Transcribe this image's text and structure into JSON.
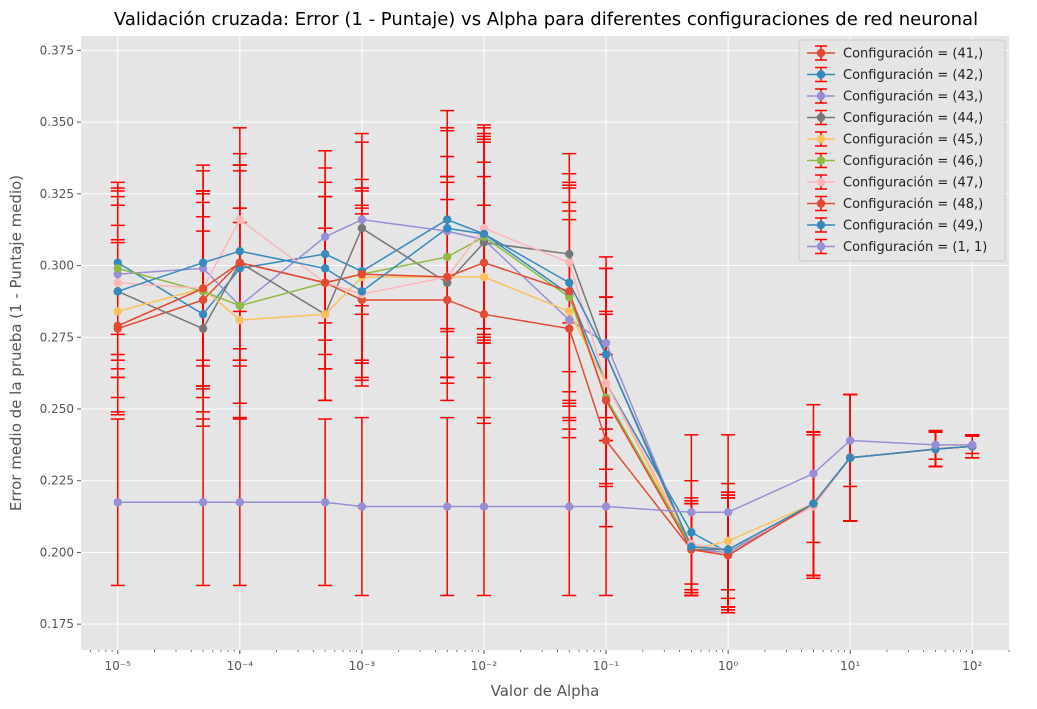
{
  "chart_data": {
    "type": "line",
    "title": "Validación cruzada: Error (1 - Puntaje) vs Alpha para diferentes configuraciones de red neuronal",
    "xlabel": "Valor de Alpha",
    "ylabel": "Error medio de la prueba (1 - Puntaje medio)",
    "xscale": "log",
    "xlim": [
      5e-06,
      200.0
    ],
    "ylim": [
      0.166,
      0.38
    ],
    "x": [
      1e-05,
      5e-05,
      0.0001,
      0.0005,
      0.001,
      0.005,
      0.01,
      0.05,
      0.1,
      0.5,
      1,
      5,
      10,
      50,
      100
    ],
    "x_tick_values": [
      1e-05,
      0.0001,
      0.001,
      0.01,
      0.1,
      1,
      10,
      100
    ],
    "x_tick_labels": [
      "10⁻⁵",
      "10⁻⁴",
      "10⁻³",
      "10⁻²",
      "10⁻¹",
      "10⁰",
      "10¹",
      "10²"
    ],
    "y_ticks": [
      0.175,
      0.2,
      0.225,
      0.25,
      0.275,
      0.3,
      0.325,
      0.35,
      0.375
    ],
    "y_tick_labels": [
      "0.175",
      "0.200",
      "0.225",
      "0.250",
      "0.275",
      "0.300",
      "0.325",
      "0.350",
      "0.375"
    ],
    "grid": true,
    "legend_position": "top-right",
    "errorbar_color": "#ff0000",
    "background": "#e5e5e5",
    "series": [
      {
        "name": "Configuración = (41,)",
        "color": "#E24A33",
        "values": [
          0.278,
          0.288,
          0.301,
          0.294,
          0.288,
          0.288,
          0.283,
          0.278,
          0.239,
          0.201,
          0.199,
          0.217,
          0.233,
          0.236,
          0.237
        ],
        "errors": [
          0.03,
          0.034,
          0.034,
          0.03,
          0.03,
          0.035,
          0.038,
          0.038,
          0.03,
          0.016,
          0.02,
          0.025,
          0.022,
          0.006,
          0.004
        ]
      },
      {
        "name": "Configuración = (42,)",
        "color": "#348ABD",
        "values": [
          0.301,
          0.283,
          0.299,
          0.304,
          0.298,
          0.316,
          0.311,
          0.29,
          0.259,
          0.207,
          0.2,
          0.217,
          0.233,
          0.236,
          0.237
        ],
        "errors": [
          0.025,
          0.034,
          0.034,
          0.03,
          0.032,
          0.038,
          0.038,
          0.038,
          0.03,
          0.018,
          0.02,
          0.025,
          0.022,
          0.006,
          0.004
        ]
      },
      {
        "name": "Configuración = (43,)",
        "color": "#988ED5",
        "values": [
          0.297,
          0.299,
          0.286,
          0.31,
          0.316,
          0.312,
          0.309,
          0.281,
          0.273,
          0.201,
          0.2,
          0.217,
          0.233,
          0.236,
          0.237
        ],
        "errors": [
          0.03,
          0.034,
          0.034,
          0.03,
          0.03,
          0.035,
          0.035,
          0.038,
          0.03,
          0.016,
          0.02,
          0.025,
          0.022,
          0.006,
          0.004
        ]
      },
      {
        "name": "Configuración = (44,)",
        "color": "#777777",
        "values": [
          0.291,
          0.278,
          0.301,
          0.283,
          0.313,
          0.294,
          0.308,
          0.304,
          0.269,
          0.201,
          0.201,
          0.217,
          0.233,
          0.236,
          0.237
        ],
        "errors": [
          0.03,
          0.034,
          0.034,
          0.03,
          0.03,
          0.035,
          0.035,
          0.024,
          0.03,
          0.016,
          0.02,
          0.025,
          0.022,
          0.006,
          0.004
        ]
      },
      {
        "name": "Configuración = (45,)",
        "color": "#FBC15E",
        "values": [
          0.284,
          0.292,
          0.281,
          0.283,
          0.296,
          0.296,
          0.296,
          0.284,
          0.259,
          0.201,
          0.204,
          0.217,
          0.233,
          0.236,
          0.237
        ],
        "errors": [
          0.03,
          0.034,
          0.034,
          0.03,
          0.03,
          0.035,
          0.035,
          0.038,
          0.03,
          0.016,
          0.02,
          0.025,
          0.022,
          0.006,
          0.004
        ]
      },
      {
        "name": "Configuración = (46,)",
        "color": "#8EBA42",
        "values": [
          0.299,
          0.291,
          0.286,
          0.294,
          0.297,
          0.303,
          0.31,
          0.289,
          0.254,
          0.202,
          0.201,
          0.217,
          0.233,
          0.236,
          0.237
        ],
        "errors": [
          0.03,
          0.034,
          0.034,
          0.03,
          0.03,
          0.035,
          0.035,
          0.038,
          0.03,
          0.016,
          0.02,
          0.025,
          0.022,
          0.006,
          0.004
        ]
      },
      {
        "name": "Configuración = (47,)",
        "color": "#FFB5B8",
        "values": [
          0.294,
          0.292,
          0.316,
          0.294,
          0.29,
          0.296,
          0.313,
          0.301,
          0.259,
          0.203,
          0.201,
          0.216,
          0.233,
          0.236,
          0.237
        ],
        "errors": [
          0.03,
          0.034,
          0.032,
          0.03,
          0.03,
          0.035,
          0.035,
          0.038,
          0.03,
          0.016,
          0.02,
          0.025,
          0.022,
          0.006,
          0.004
        ]
      },
      {
        "name": "Configuración = (48,)",
        "color": "#E24A33",
        "values": [
          0.279,
          0.292,
          0.301,
          0.294,
          0.297,
          0.296,
          0.301,
          0.291,
          0.253,
          0.201,
          0.199,
          0.217,
          0.233,
          0.236,
          0.237
        ],
        "errors": [
          0.03,
          0.034,
          0.034,
          0.03,
          0.03,
          0.035,
          0.035,
          0.038,
          0.03,
          0.016,
          0.02,
          0.025,
          0.022,
          0.006,
          0.004
        ]
      },
      {
        "name": "Configuración = (49,)",
        "color": "#348ABD",
        "values": [
          0.291,
          0.301,
          0.305,
          0.299,
          0.291,
          0.313,
          0.311,
          0.294,
          0.269,
          0.202,
          0.201,
          0.217,
          0.233,
          0.236,
          0.237
        ],
        "errors": [
          0.03,
          0.034,
          0.034,
          0.03,
          0.03,
          0.035,
          0.035,
          0.038,
          0.03,
          0.016,
          0.02,
          0.025,
          0.022,
          0.006,
          0.004
        ]
      },
      {
        "name": "Configuración = (1, 1)",
        "color": "#988ED5",
        "values": [
          0.2175,
          0.2175,
          0.2175,
          0.2175,
          0.216,
          0.216,
          0.216,
          0.216,
          0.216,
          0.214,
          0.214,
          0.2275,
          0.239,
          0.2375,
          0.2375
        ],
        "errors": [
          0.029,
          0.029,
          0.029,
          0.029,
          0.031,
          0.031,
          0.031,
          0.031,
          0.031,
          0.027,
          0.027,
          0.024,
          0.016,
          0.005,
          0.003
        ]
      }
    ]
  }
}
